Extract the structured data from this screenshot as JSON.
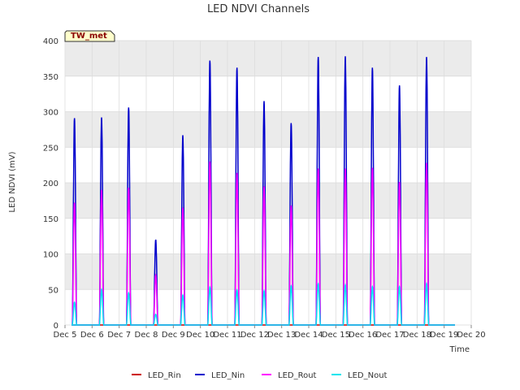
{
  "chart_data": {
    "type": "line",
    "title": "LED NDVI Channels",
    "xlabel": "Time",
    "ylabel": "LED NDVI (mV)",
    "ylim": [
      0,
      400
    ],
    "xlim": [
      5,
      20
    ],
    "y_ticks": [
      0,
      50,
      100,
      150,
      200,
      250,
      300,
      350,
      400
    ],
    "x_ticks": [
      {
        "v": 5,
        "label": "Dec 5"
      },
      {
        "v": 6,
        "label": "Dec 6"
      },
      {
        "v": 7,
        "label": "Dec 7"
      },
      {
        "v": 8,
        "label": "Dec 8"
      },
      {
        "v": 9,
        "label": "Dec 9"
      },
      {
        "v": 10,
        "label": "Dec 10"
      },
      {
        "v": 11,
        "label": "Dec 11"
      },
      {
        "v": 12,
        "label": "Dec 12"
      },
      {
        "v": 13,
        "label": "Dec 13"
      },
      {
        "v": 14,
        "label": "Dec 14"
      },
      {
        "v": 15,
        "label": "Dec 15"
      },
      {
        "v": 16,
        "label": "Dec 16"
      },
      {
        "v": 17,
        "label": "Dec 17"
      },
      {
        "v": 18,
        "label": "Dec 18"
      },
      {
        "v": 19,
        "label": "Dec 19"
      },
      {
        "v": 20,
        "label": "Dec 20"
      }
    ],
    "grid": true,
    "background_bands": true,
    "legend_position": "bottom-center",
    "badge": "TW_met",
    "days": [
      {
        "day": 5,
        "Rin": 0,
        "Nin": 291,
        "Rout": 172,
        "Nout": 32
      },
      {
        "day": 6,
        "Rin": 0,
        "Nin": 292,
        "Rout": 190,
        "Nout": 50
      },
      {
        "day": 7,
        "Rin": 0,
        "Nin": 306,
        "Rout": 193,
        "Nout": 45
      },
      {
        "day": 8,
        "Rin": 0,
        "Nin": 120,
        "Rout": 70,
        "Nout": 15
      },
      {
        "day": 9,
        "Rin": 0,
        "Nin": 267,
        "Rout": 165,
        "Nout": 42
      },
      {
        "day": 10,
        "Rin": 0,
        "Nin": 372,
        "Rout": 230,
        "Nout": 53
      },
      {
        "day": 11,
        "Rin": 0,
        "Nin": 362,
        "Rout": 214,
        "Nout": 49
      },
      {
        "day": 12,
        "Rin": 0,
        "Nin": 315,
        "Rout": 195,
        "Nout": 48
      },
      {
        "day": 13,
        "Rin": 0,
        "Nin": 284,
        "Rout": 168,
        "Nout": 55
      },
      {
        "day": 14,
        "Rin": 0,
        "Nin": 377,
        "Rout": 220,
        "Nout": 58
      },
      {
        "day": 15,
        "Rin": 0,
        "Nin": 378,
        "Rout": 220,
        "Nout": 56
      },
      {
        "day": 16,
        "Rin": 0,
        "Nin": 362,
        "Rout": 221,
        "Nout": 54
      },
      {
        "day": 17,
        "Rin": 0,
        "Nin": 337,
        "Rout": 201,
        "Nout": 54
      },
      {
        "day": 18,
        "Rin": 0,
        "Nin": 377,
        "Rout": 228,
        "Nout": 58
      }
    ],
    "series": [
      {
        "name": "LED_Rin",
        "key": "Rin",
        "color": "#cc0000"
      },
      {
        "name": "LED_Nin",
        "key": "Nin",
        "color": "#0000cc"
      },
      {
        "name": "LED_Rout",
        "key": "Rout",
        "color": "#ff00ff"
      },
      {
        "name": "LED_Nout",
        "key": "Nout",
        "color": "#00e5ee"
      }
    ]
  }
}
